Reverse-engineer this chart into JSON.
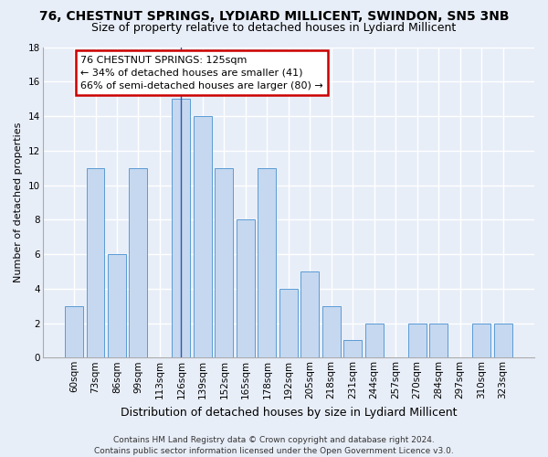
{
  "title": "76, CHESTNUT SPRINGS, LYDIARD MILLICENT, SWINDON, SN5 3NB",
  "subtitle": "Size of property relative to detached houses in Lydiard Millicent",
  "xlabel": "Distribution of detached houses by size in Lydiard Millicent",
  "ylabel": "Number of detached properties",
  "footnote": "Contains HM Land Registry data © Crown copyright and database right 2024.\nContains public sector information licensed under the Open Government Licence v3.0.",
  "categories": [
    "60sqm",
    "73sqm",
    "86sqm",
    "99sqm",
    "113sqm",
    "126sqm",
    "139sqm",
    "152sqm",
    "165sqm",
    "178sqm",
    "192sqm",
    "205sqm",
    "218sqm",
    "231sqm",
    "244sqm",
    "257sqm",
    "270sqm",
    "284sqm",
    "297sqm",
    "310sqm",
    "323sqm"
  ],
  "values": [
    3,
    11,
    6,
    11,
    0,
    15,
    14,
    11,
    8,
    11,
    4,
    5,
    3,
    1,
    2,
    0,
    2,
    2,
    0,
    2,
    2
  ],
  "bar_color": "#c5d8f0",
  "bar_edgecolor": "#5b9bd5",
  "highlight_bar_index": 5,
  "annotation_title": "76 CHESTNUT SPRINGS: 125sqm",
  "annotation_line1": "← 34% of detached houses are smaller (41)",
  "annotation_line2": "66% of semi-detached houses are larger (80) →",
  "annotation_box_edgecolor": "#cc0000",
  "vline_x": 5,
  "ylim": [
    0,
    18
  ],
  "yticks": [
    0,
    2,
    4,
    6,
    8,
    10,
    12,
    14,
    16,
    18
  ],
  "background_color": "#e8eef8",
  "grid_color": "#ffffff",
  "title_fontsize": 10,
  "subtitle_fontsize": 9,
  "xlabel_fontsize": 9,
  "ylabel_fontsize": 8,
  "tick_fontsize": 7.5,
  "annotation_fontsize": 8,
  "footnote_fontsize": 6.5
}
